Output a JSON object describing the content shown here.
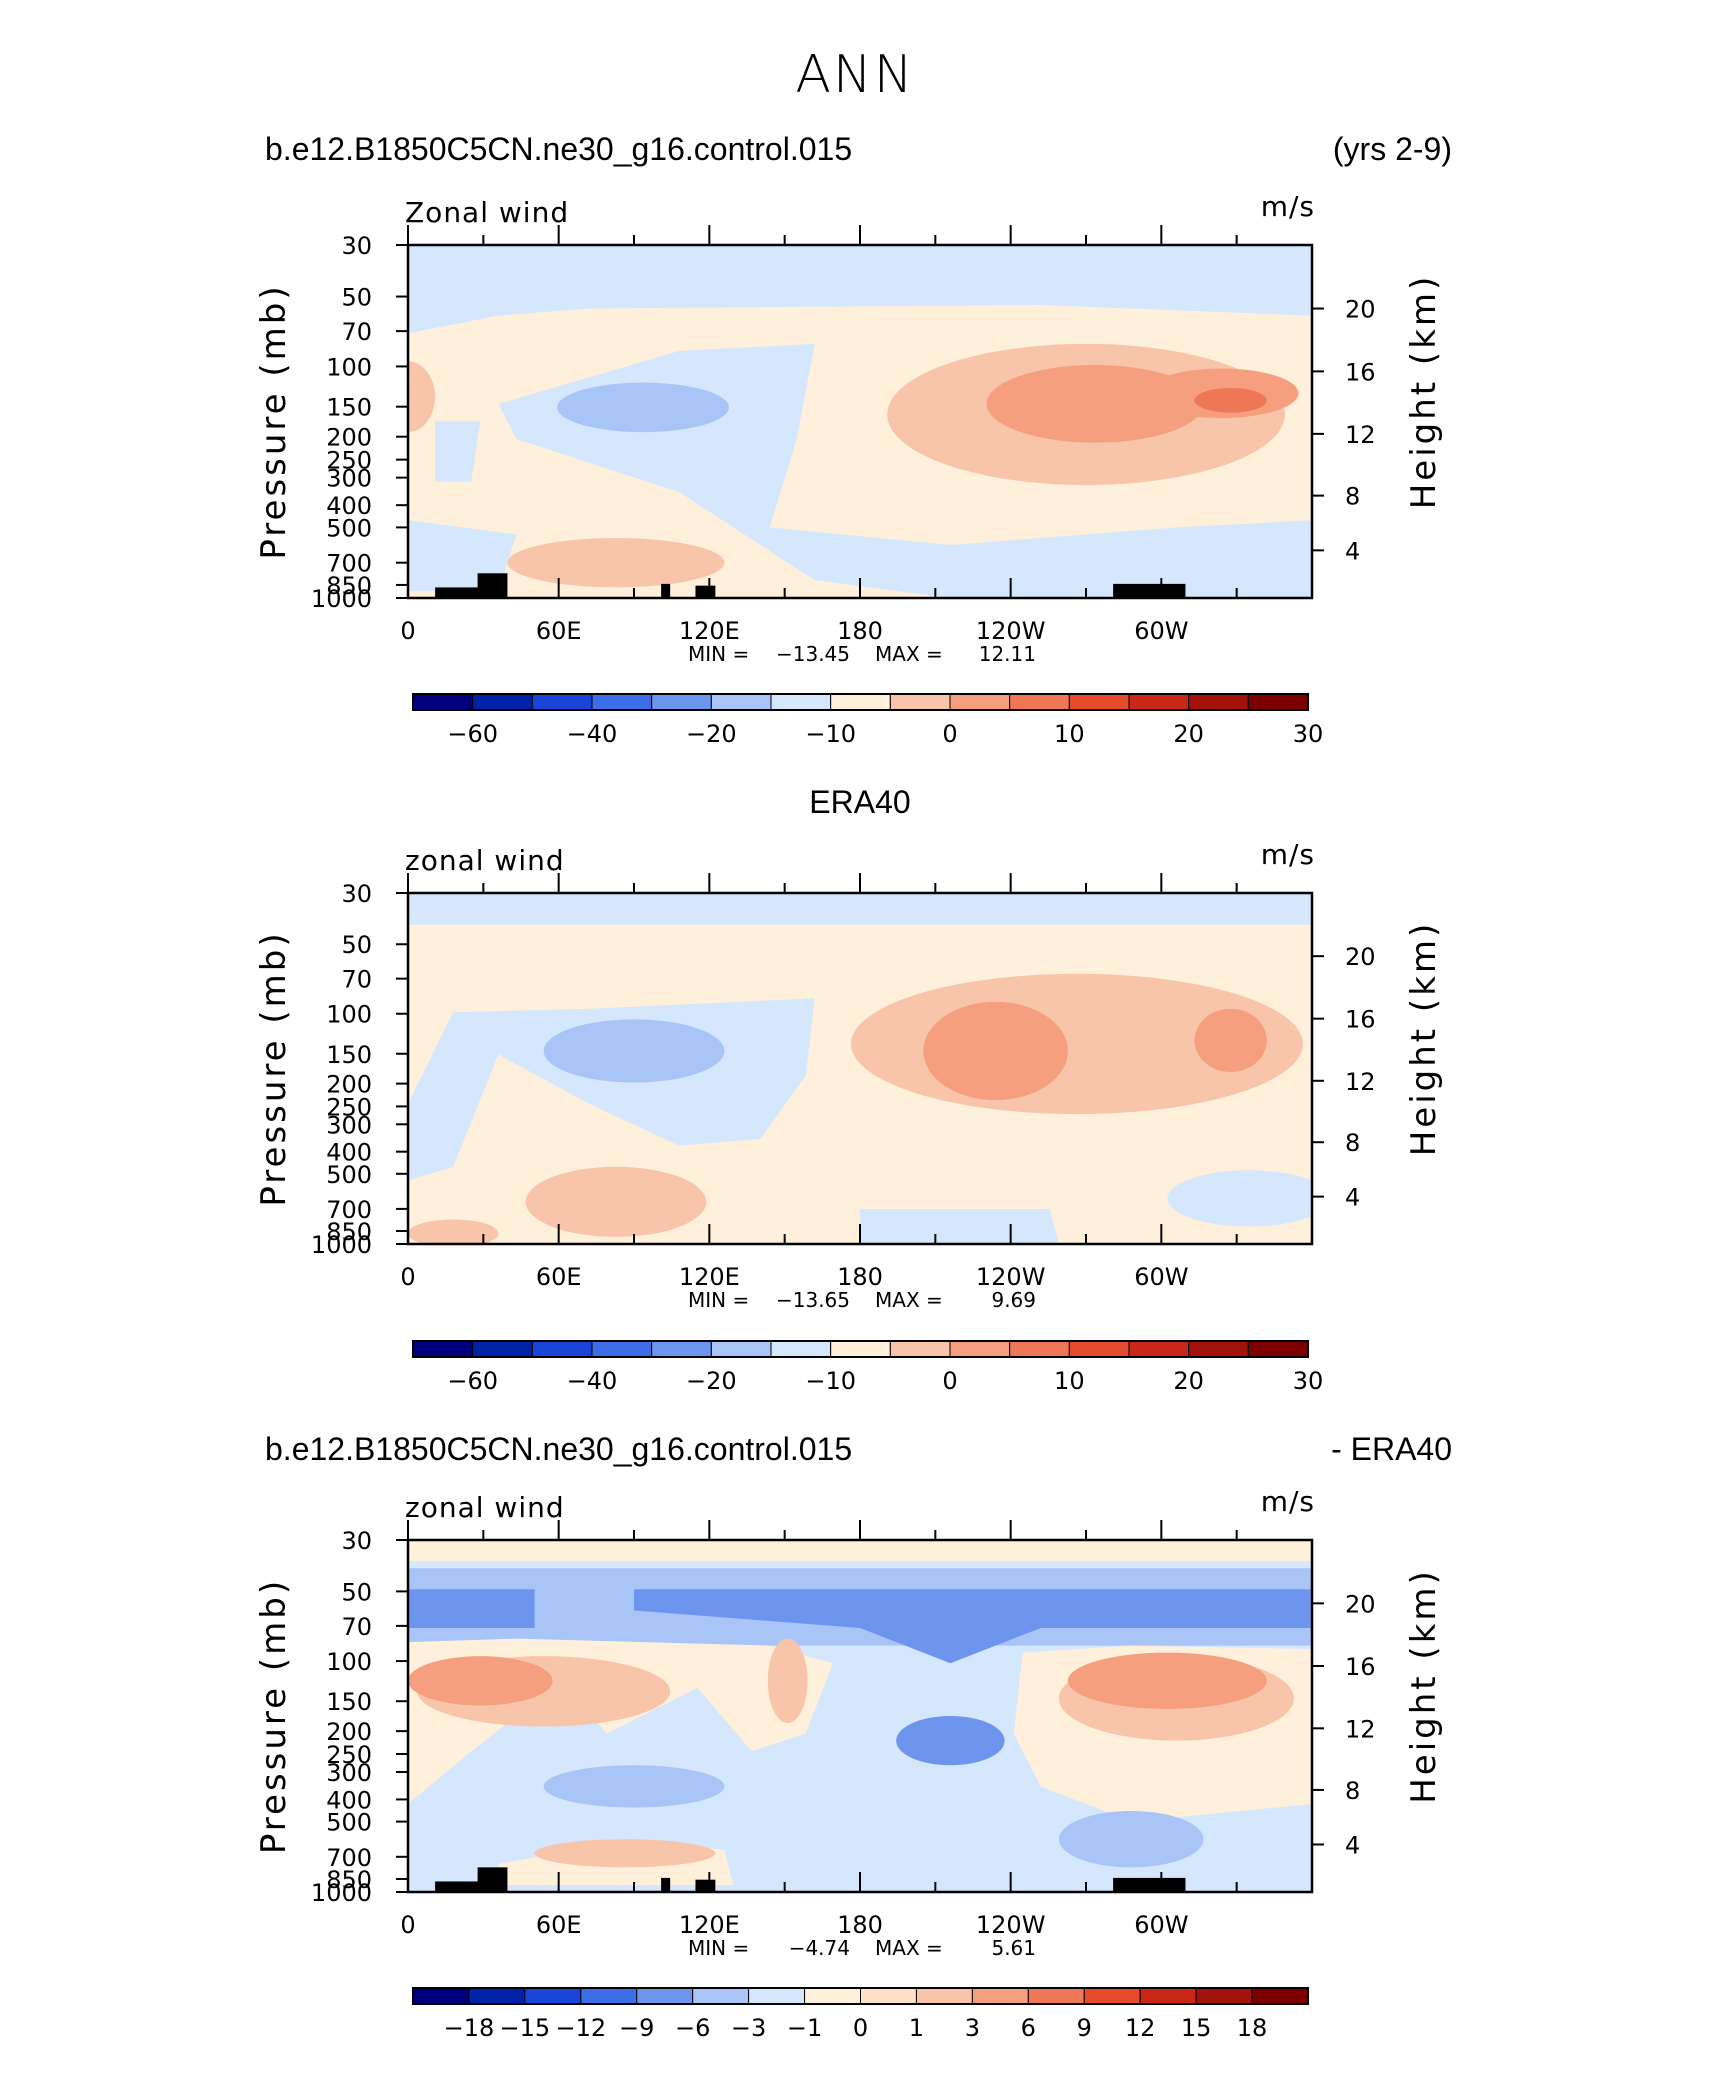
{
  "figure": {
    "title": "ANN"
  },
  "chart_data": [
    {
      "type": "heatmap",
      "header_left": "b.e12.B1850C5CN.ne30_g16.control.015",
      "header_right": "(yrs 2-9)",
      "variable_label": "Zonal wind",
      "units": "m/s",
      "ylabel": "Pressure (mb)",
      "ylabel_right": "Height (km)",
      "y_ticks": [
        "30",
        "50",
        "70",
        "100",
        "150",
        "200",
        "250",
        "300",
        "400",
        "500",
        "700",
        "850",
        "1000"
      ],
      "y_right_ticks": [
        "20",
        "16",
        "12",
        "8",
        "4"
      ],
      "x_ticks": [
        "0",
        "60E",
        "120E",
        "180",
        "120W",
        "60W"
      ],
      "min_label": "MIN =",
      "min_value": "−13.45",
      "max_label": "MAX =",
      "max_value": "12.11",
      "colorbar_labels": [
        "−60",
        "−40",
        "−20",
        "−10",
        "0",
        "10",
        "20",
        "30"
      ],
      "colors": [
        "#00007f",
        "#0022a8",
        "#1a44d8",
        "#3d6ee8",
        "#6e95ee",
        "#a9c4f7",
        "#d5e7fc",
        "#fff0dc",
        "#f9c5aa",
        "#f59f7e",
        "#ee7755",
        "#e54b2b",
        "#c92816",
        "#a3120b",
        "#7d0000"
      ]
    },
    {
      "type": "heatmap",
      "header_center": "ERA40",
      "variable_label": "zonal wind",
      "units": "m/s",
      "ylabel": "Pressure (mb)",
      "ylabel_right": "Height (km)",
      "y_ticks": [
        "30",
        "50",
        "70",
        "100",
        "150",
        "200",
        "250",
        "300",
        "400",
        "500",
        "700",
        "850",
        "1000"
      ],
      "y_right_ticks": [
        "20",
        "16",
        "12",
        "8",
        "4"
      ],
      "x_ticks": [
        "0",
        "60E",
        "120E",
        "180",
        "120W",
        "60W"
      ],
      "min_label": "MIN =",
      "min_value": "−13.65",
      "max_label": "MAX =",
      "max_value": "9.69",
      "colorbar_labels": [
        "−60",
        "−40",
        "−20",
        "−10",
        "0",
        "10",
        "20",
        "30"
      ],
      "colors": [
        "#00007f",
        "#0022a8",
        "#1a44d8",
        "#3d6ee8",
        "#6e95ee",
        "#a9c4f7",
        "#d5e7fc",
        "#fff0dc",
        "#f9c5aa",
        "#f59f7e",
        "#ee7755",
        "#e54b2b",
        "#c92816",
        "#a3120b",
        "#7d0000"
      ]
    },
    {
      "type": "heatmap",
      "header_left": "b.e12.B1850C5CN.ne30_g16.control.015",
      "header_right": "- ERA40",
      "variable_label": "zonal wind",
      "units": "m/s",
      "ylabel": "Pressure (mb)",
      "ylabel_right": "Height (km)",
      "y_ticks": [
        "30",
        "50",
        "70",
        "100",
        "150",
        "200",
        "250",
        "300",
        "400",
        "500",
        "700",
        "850",
        "1000"
      ],
      "y_right_ticks": [
        "20",
        "16",
        "12",
        "8",
        "4"
      ],
      "x_ticks": [
        "0",
        "60E",
        "120E",
        "180",
        "120W",
        "60W"
      ],
      "min_label": "MIN =",
      "min_value": "−4.74",
      "max_label": "MAX =",
      "max_value": "5.61",
      "colorbar_labels": [
        "−18",
        "−15",
        "−12",
        "−9",
        "−6",
        "−3",
        "−1",
        "0",
        "1",
        "3",
        "6",
        "9",
        "12",
        "15",
        "18"
      ],
      "colors": [
        "#00007f",
        "#0022a8",
        "#1a44d8",
        "#3d6ee8",
        "#6e95ee",
        "#a9c4f7",
        "#d5e7fc",
        "#fff0dc",
        "#fde2c8",
        "#f9c5aa",
        "#f59f7e",
        "#ee7755",
        "#e54b2b",
        "#c92816",
        "#a3120b",
        "#7d0000"
      ]
    }
  ]
}
